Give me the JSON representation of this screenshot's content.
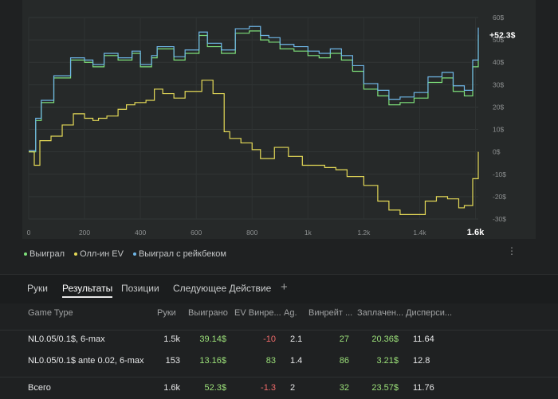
{
  "chart_data": {
    "type": "line",
    "x_ticks": [
      "0",
      "200",
      "400",
      "600",
      "800",
      "1k",
      "1.2k",
      "1.4k",
      "1.6k"
    ],
    "y_ticks": [
      "60$",
      "50$",
      "40$",
      "30$",
      "20$",
      "10$",
      "0$",
      "-10$",
      "-20$",
      "-30$"
    ],
    "xlim": [
      0,
      1610
    ],
    "ylim": [
      -30,
      60
    ],
    "end_label": "+52.3$",
    "series": [
      {
        "name": "Выиграл",
        "color": "#7ee07a",
        "x": [
          0,
          25,
          45,
          90,
          150,
          200,
          230,
          270,
          320,
          370,
          400,
          440,
          460,
          520,
          560,
          610,
          640,
          690,
          740,
          790,
          830,
          860,
          900,
          950,
          1000,
          1040,
          1080,
          1120,
          1160,
          1200,
          1250,
          1290,
          1330,
          1380,
          1430,
          1480,
          1520,
          1560,
          1590,
          1610
        ],
        "y": [
          0,
          14,
          22,
          33,
          41,
          40,
          38,
          43,
          41,
          44,
          38,
          42,
          46,
          41,
          44,
          52,
          47,
          44,
          53,
          54,
          50,
          49,
          46,
          45,
          43,
          42,
          44,
          41,
          36,
          28,
          25,
          21,
          22,
          24,
          31,
          33,
          27,
          25,
          38,
          52.3
        ]
      },
      {
        "name": "Олл-ин EV",
        "color": "#e4d957",
        "x": [
          0,
          20,
          40,
          80,
          120,
          160,
          200,
          230,
          250,
          280,
          320,
          350,
          380,
          420,
          450,
          480,
          520,
          560,
          620,
          660,
          700,
          720,
          760,
          800,
          830,
          880,
          930,
          980,
          1020,
          1060,
          1100,
          1140,
          1200,
          1250,
          1290,
          1330,
          1380,
          1420,
          1460,
          1500,
          1540,
          1560,
          1590,
          1610
        ],
        "y": [
          0,
          -6,
          5,
          7,
          12,
          17,
          15,
          14,
          15,
          16,
          19,
          21,
          22,
          23,
          28,
          26,
          24,
          27,
          32,
          26,
          9,
          6,
          4,
          1,
          -3,
          2,
          -2,
          -6,
          -6,
          -7,
          -8,
          -11,
          -15,
          -22,
          -26,
          -28,
          -28,
          -22,
          -20,
          -21,
          -25,
          -24,
          -12,
          0
        ]
      },
      {
        "name": "Выиграл с рейкбеком",
        "color": "#6fb7e8",
        "x": [
          0,
          25,
          45,
          90,
          150,
          200,
          230,
          270,
          320,
          370,
          400,
          440,
          460,
          520,
          560,
          610,
          640,
          690,
          740,
          790,
          830,
          860,
          900,
          950,
          1000,
          1040,
          1080,
          1120,
          1160,
          1200,
          1250,
          1290,
          1330,
          1380,
          1430,
          1480,
          1520,
          1560,
          1590,
          1610
        ],
        "y": [
          0.5,
          15,
          23,
          34,
          42,
          41,
          39,
          44,
          42,
          45,
          39,
          43,
          47,
          42.5,
          45.5,
          53.5,
          48.5,
          45.5,
          55,
          56,
          52,
          51,
          48,
          47,
          45,
          44,
          46,
          43,
          38.5,
          30.5,
          27.5,
          23.5,
          24.5,
          26.5,
          33.5,
          35.5,
          29.5,
          27.5,
          41,
          55.5
        ]
      }
    ]
  },
  "legend": [
    {
      "label": "Выиграл",
      "color": "#7ee07a"
    },
    {
      "label": "Олл-ин EV",
      "color": "#e4d957"
    },
    {
      "label": "Выиграл с рейкбеком",
      "color": "#6fb7e8"
    }
  ],
  "tabs": [
    "Руки",
    "Результаты",
    "Позиции",
    "Следующее Действие",
    "+"
  ],
  "table": {
    "headers": [
      "Game Type",
      "Руки",
      "Выиграно",
      "EV Винре...",
      "Ag.",
      "Винрейт ...",
      "Заплачен...",
      "Дисперси..."
    ],
    "rows": [
      [
        "NL0.05/0.1$, 6-max",
        "1.5k",
        "39.14$",
        "-10",
        "2.1",
        "27",
        "20.36$",
        "11.64"
      ],
      [
        "NL0.05/0.1$ ante 0.02, 6-max",
        "153",
        "13.16$",
        "83",
        "1.4",
        "86",
        "3.21$",
        "12.8"
      ]
    ],
    "total": [
      "Всего",
      "1.6k",
      "52.3$",
      "-1.3",
      "2",
      "32",
      "23.57$",
      "11.76"
    ]
  }
}
